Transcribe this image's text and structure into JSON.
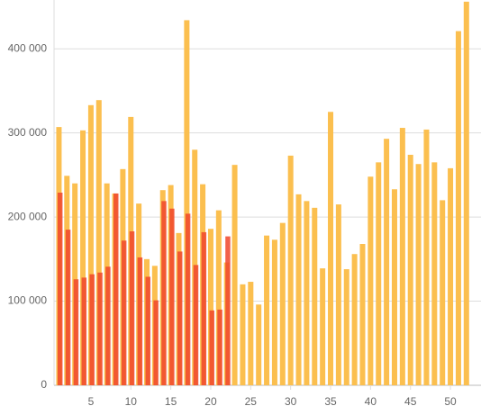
{
  "chart_data": {
    "type": "bar",
    "categories": [
      null,
      null,
      null,
      null,
      "5",
      null,
      null,
      null,
      null,
      "10",
      null,
      null,
      null,
      null,
      "15",
      null,
      null,
      null,
      null,
      "20",
      null,
      null,
      null,
      null,
      "25",
      null,
      null,
      null,
      null,
      "30",
      null,
      null,
      null,
      null,
      "35",
      null,
      null,
      null,
      null,
      "40",
      null,
      null,
      null,
      null,
      "45",
      null,
      null,
      null,
      null,
      "50",
      null,
      null
    ],
    "series": [
      {
        "color": "#fbbf4f",
        "values": [
          307000,
          249000,
          240000,
          303000,
          333000,
          339000,
          240000,
          228000,
          257000,
          319000,
          216000,
          150000,
          142000,
          232000,
          238000,
          181000,
          434000,
          280000,
          239000,
          186000,
          208000,
          146000,
          262000,
          120000,
          123000,
          96000,
          178000,
          173000,
          193000,
          273000,
          227000,
          219000,
          211000,
          139000,
          325000,
          215000,
          138000,
          156000,
          168000,
          248000,
          265000,
          293000,
          233000,
          306000,
          274000,
          263000,
          304000,
          265000,
          220000,
          258000,
          421000,
          456000
        ]
      },
      {
        "color": "#f0452a",
        "values": [
          229000,
          185000,
          126000,
          128000,
          132000,
          134000,
          141000,
          228000,
          172000,
          183000,
          152000,
          129000,
          101000,
          219000,
          210000,
          159000,
          204000,
          143000,
          182000,
          89000,
          90000,
          177000,
          null,
          null,
          null,
          null,
          null,
          null,
          null,
          null,
          null,
          null,
          null,
          null,
          null,
          null,
          null,
          null,
          null,
          null,
          null,
          null,
          null,
          null,
          null,
          null,
          null,
          null,
          null,
          null,
          null,
          null
        ]
      }
    ],
    "ylim": [
      0,
      458000
    ],
    "yticks": [
      0,
      {
        "value": 100000,
        "label": "100 000"
      },
      {
        "value": 200000,
        "label": "200 000"
      },
      {
        "value": 300000,
        "label": "300 000"
      },
      {
        "value": 400000,
        "label": "400 000"
      }
    ],
    "grid": true
  }
}
